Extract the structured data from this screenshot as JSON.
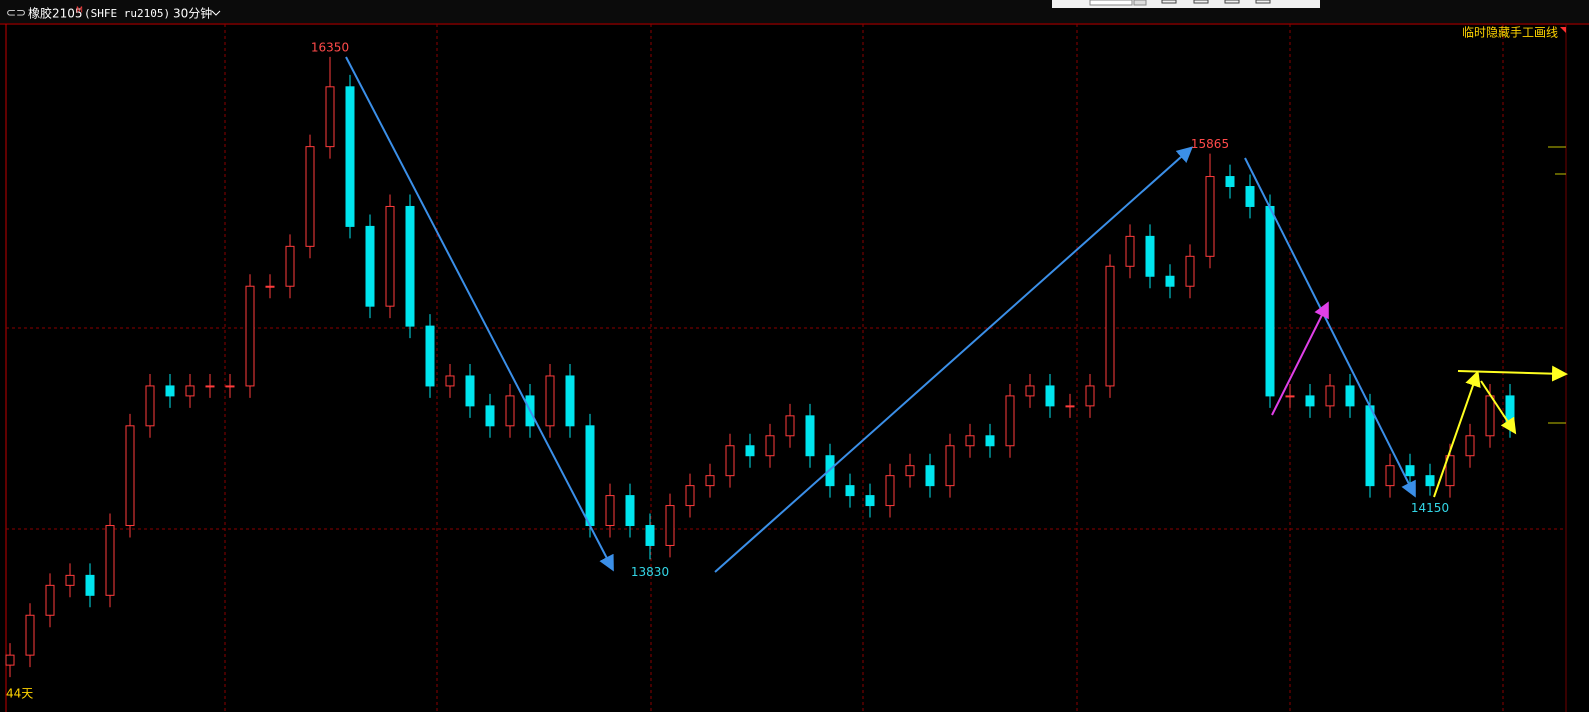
{
  "header": {
    "symbol": "橡胶2105",
    "flag": "M",
    "code": "(SHFE ru2105)",
    "period": "30分钟"
  },
  "hide_drawings": "临时隐藏手工画线",
  "footer": "44天",
  "chart_data": {
    "type": "candlestick",
    "ylim": [
      13110,
      16515
    ],
    "up_color": "#ff3c3c",
    "down_color": "#00e5ee",
    "open": [
      13300,
      13350,
      13550,
      13700,
      13750,
      13650,
      14000,
      14500,
      14700,
      14650,
      14700,
      14700,
      14700,
      15200,
      15200,
      15400,
      15900,
      16200,
      15500,
      15100,
      15600,
      15000,
      14700,
      14750,
      14600,
      14500,
      14650,
      14500,
      14750,
      14500,
      14000,
      14150,
      14000,
      13900,
      14100,
      14200,
      14250,
      14400,
      14350,
      14450,
      14550,
      14350,
      14200,
      14150,
      14100,
      14250,
      14300,
      14200,
      14400,
      14450,
      14400,
      14650,
      14700,
      14600,
      14600,
      14700,
      15300,
      15450,
      15250,
      15200,
      15350,
      15750,
      15700,
      15600,
      14650,
      14650,
      14600,
      14700,
      14600,
      14200,
      14300,
      14250,
      14200,
      14350,
      14450,
      14650
    ],
    "high": [
      13410,
      13610,
      13760,
      13810,
      13810,
      14060,
      14560,
      14760,
      14760,
      14760,
      14760,
      14760,
      15260,
      15260,
      15460,
      15960,
      16350,
      16260,
      15560,
      15660,
      15660,
      15060,
      14810,
      14810,
      14660,
      14710,
      14710,
      14810,
      14810,
      14560,
      14210,
      14210,
      14060,
      14160,
      14260,
      14310,
      14460,
      14460,
      14510,
      14610,
      14610,
      14410,
      14260,
      14210,
      14310,
      14360,
      14360,
      14460,
      14510,
      14510,
      14710,
      14760,
      14760,
      14660,
      14760,
      15360,
      15510,
      15510,
      15310,
      15410,
      15865,
      15810,
      15760,
      15660,
      14710,
      14710,
      14760,
      14760,
      14660,
      14360,
      14360,
      14310,
      14410,
      14510,
      14710,
      14710
    ],
    "low": [
      13240,
      13290,
      13490,
      13640,
      13590,
      13590,
      13940,
      14440,
      14590,
      14590,
      14640,
      14640,
      14640,
      15140,
      15140,
      15340,
      15840,
      15440,
      15040,
      15040,
      14940,
      14640,
      14640,
      14540,
      14440,
      14440,
      14440,
      14440,
      14440,
      13940,
      13940,
      13940,
      13830,
      13840,
      14040,
      14140,
      14190,
      14290,
      14290,
      14390,
      14290,
      14140,
      14090,
      14040,
      14040,
      14190,
      14140,
      14140,
      14340,
      14340,
      14340,
      14590,
      14540,
      14540,
      14540,
      14640,
      15240,
      15190,
      15140,
      15140,
      15290,
      15640,
      15540,
      14590,
      14590,
      14540,
      14540,
      14540,
      14140,
      14140,
      14190,
      14150,
      14140,
      14290,
      14390,
      14440
    ],
    "close": [
      13350,
      13550,
      13700,
      13750,
      13650,
      14000,
      14500,
      14700,
      14650,
      14700,
      14700,
      14700,
      15200,
      15200,
      15400,
      15900,
      16200,
      15500,
      15100,
      15600,
      15000,
      14700,
      14750,
      14600,
      14500,
      14650,
      14500,
      14750,
      14500,
      14000,
      14150,
      14000,
      13900,
      14100,
      14200,
      14250,
      14400,
      14350,
      14450,
      14550,
      14350,
      14200,
      14150,
      14100,
      14250,
      14300,
      14200,
      14400,
      14450,
      14400,
      14650,
      14700,
      14600,
      14600,
      14700,
      15300,
      15450,
      15250,
      15200,
      15350,
      15750,
      15700,
      15600,
      14650,
      14650,
      14600,
      14700,
      14600,
      14200,
      14300,
      14250,
      14200,
      14350,
      14450,
      14650,
      14500
    ],
    "price_labels": [
      {
        "value": 16350,
        "color": "#ff4a4a"
      },
      {
        "value": 13830,
        "color": "#33d6e6"
      },
      {
        "value": 15865,
        "color": "#ff4a4a"
      },
      {
        "value": 14150,
        "color": "#33d6e6"
      }
    ]
  }
}
